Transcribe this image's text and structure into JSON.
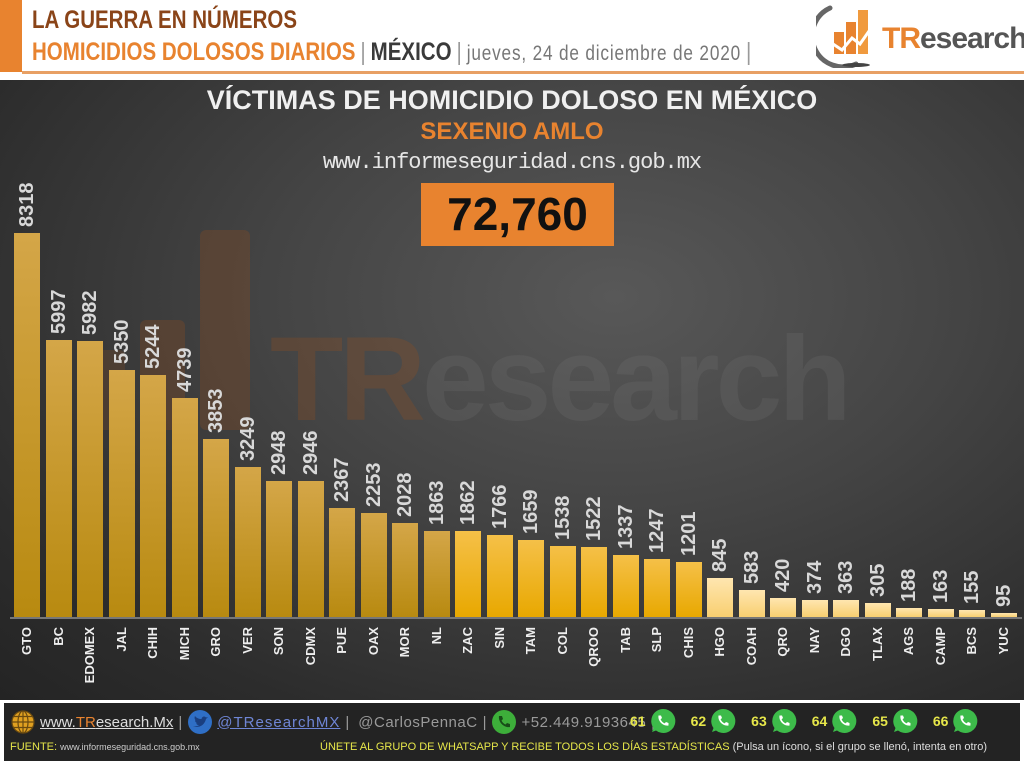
{
  "header": {
    "line1": "LA GUERRA EN NÚMEROS",
    "subtitle": "HOMICIDIOS DOLOSOS DIARIOS",
    "separator": "|",
    "country": "MÉXICO",
    "date": "jueves, 24 de diciembre de 2020",
    "logo_brand_accent": "TR",
    "logo_brand_rest": "esearch",
    "accent_color": "#e8832f"
  },
  "panel": {
    "title": "VÍCTIMAS DE HOMICIDIO DOLOSO EN MÉXICO",
    "subtitle": "SEXENIO AMLO",
    "source_url": "www.informeseguridad.cns.gob.mx",
    "total": "72,760",
    "watermark_accent": "TR",
    "watermark_rest": "esearch"
  },
  "chart_data": {
    "type": "bar",
    "title": "VÍCTIMAS DE HOMICIDIO DOLOSO EN MÉXICO",
    "subtitle": "SEXENIO AMLO",
    "xlabel": "",
    "ylabel": "",
    "total": 72760,
    "grid": false,
    "legend": "none",
    "value_labels": "rotated -90, above bars",
    "ylim": [
      0,
      8318
    ],
    "categories": [
      "GTO",
      "BC",
      "EDOMEX",
      "JAL",
      "CHIH",
      "MICH",
      "GRO",
      "VER",
      "SON",
      "CDMX",
      "PUE",
      "OAX",
      "MOR",
      "NL",
      "ZAC",
      "SIN",
      "TAM",
      "COL",
      "QROO",
      "TAB",
      "SLP",
      "CHIS",
      "HGO",
      "COAH",
      "QRO",
      "NAY",
      "DGO",
      "TLAX",
      "AGS",
      "CAMP",
      "BCS",
      "YUC"
    ],
    "values": [
      8318,
      5997,
      5982,
      5350,
      5244,
      4739,
      3853,
      3249,
      2948,
      2946,
      2367,
      2253,
      2028,
      1863,
      1862,
      1766,
      1659,
      1538,
      1522,
      1337,
      1247,
      1201,
      845,
      583,
      420,
      374,
      363,
      305,
      188,
      163,
      155,
      95
    ]
  },
  "footer": {
    "website_accent": "TR",
    "website_prefix": "www.",
    "website_rest": "esearch.Mx",
    "twitter": "@TResearchMX",
    "personal": "@CarlosPennaC",
    "phone": "+52.449.9193645",
    "pipe": "|",
    "source_label": "FUENTE:",
    "source_value": "www.informeseguridad.cns.gob.mx",
    "join_text": "ÚNETE AL GRUPO DE WHATSAPP Y RECIBE TODOS LOS DÍAS ESTADÍSTICAS",
    "join_note": "(Pulsa un ícono, si el grupo se llenó, intenta en otro)",
    "whatsapp_groups": [
      "61",
      "62",
      "63",
      "64",
      "65",
      "66"
    ]
  }
}
